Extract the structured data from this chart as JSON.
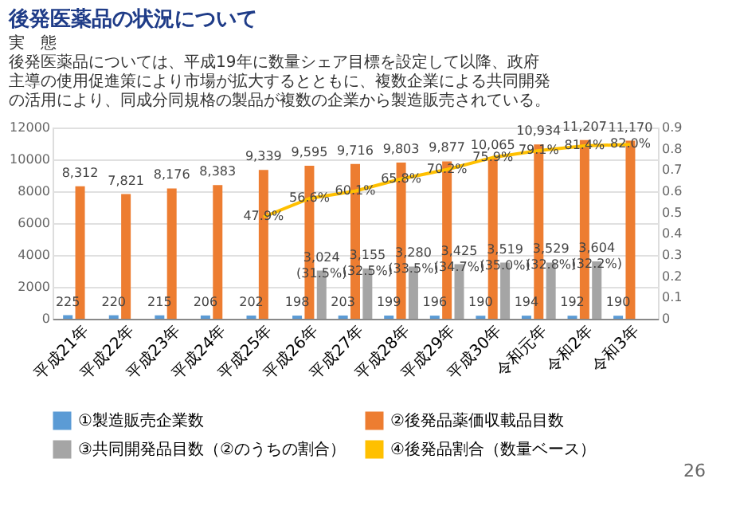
{
  "chart_data": {
    "type": "bar",
    "title": "後発医薬品の状況について",
    "subtitle": "実　態",
    "annotations": [
      "後発医薬品については、平成19年に数量シェア目標を設定して以降、政府主導の使用促進策により市場が拡大するとともに、複数企業による共同開発の活用により、同成分同規格の製品が複数の企業から製造販売されている。",
      "26"
    ],
    "categories": [
      "平成21年",
      "平成22年",
      "平成23年",
      "平成24年",
      "平成25年",
      "平成26年",
      "平成27年",
      "平成28年",
      "平成29年",
      "平成30年",
      "令和元年",
      "令和2年",
      "令和3年"
    ],
    "series": [
      {
        "name": "①製造販売企業数",
        "color": "#5b9bd5",
        "values": [
          225,
          220,
          215,
          206,
          202,
          198,
          203,
          199,
          196,
          190,
          194,
          192,
          190
        ],
        "value_labels": [
          "225",
          "220",
          "215",
          "206",
          "202",
          "198",
          "203",
          "199",
          "196",
          "190",
          "194",
          "192",
          "190"
        ]
      },
      {
        "name": "②後発品薬価収載品目数",
        "color": "#ed7d31",
        "values": [
          8312,
          7821,
          8176,
          8383,
          9339,
          9595,
          9716,
          9803,
          9877,
          10065,
          10934,
          11207,
          11170
        ],
        "value_labels": [
          "8,312",
          "7,821",
          "8,176",
          "8,383",
          "9,339",
          "9,595",
          "9,716",
          "9,803",
          "9,877",
          "10,065",
          "10,934",
          "11,207",
          "11,170"
        ]
      },
      {
        "name": "③共同開発品目数（②のうちの割合）",
        "color": "#a5a5a5",
        "values": [
          null,
          null,
          null,
          null,
          null,
          3024,
          3155,
          3280,
          3425,
          3519,
          3529,
          3604,
          null
        ],
        "value_labels": [
          null,
          null,
          null,
          null,
          null,
          "3,024 (31.5%)",
          "3,155 (32.5%)",
          "3,280 (33.5%)",
          "3,425 (34.7%)",
          "3,519 (35.0%)",
          "3,529 (32.8%)",
          "3,604 (32.2%)",
          null
        ]
      },
      {
        "name": "④後発品割合（数量ベース）",
        "color": "#ffc000",
        "type": "line",
        "axis": "y2",
        "values": [
          null,
          null,
          null,
          null,
          0.479,
          0.566,
          0.601,
          0.658,
          0.702,
          0.759,
          0.791,
          0.814,
          0.82
        ],
        "value_labels": [
          null,
          null,
          null,
          null,
          "47.9%",
          "56.6%",
          "60.1%",
          "65.8%",
          "70.2%",
          "75.9%",
          "79.1%",
          "81.4%",
          "82.0%"
        ]
      }
    ],
    "ylim": [
      0,
      12000
    ],
    "yticks": [
      0,
      2000,
      4000,
      6000,
      8000,
      10000,
      12000
    ],
    "y2lim": [
      0,
      0.9
    ],
    "y2ticks": [
      0,
      0.1,
      0.2,
      0.3,
      0.4,
      0.5,
      0.6,
      0.7,
      0.8,
      0.9
    ],
    "grid": "y",
    "legend": "bottom"
  }
}
